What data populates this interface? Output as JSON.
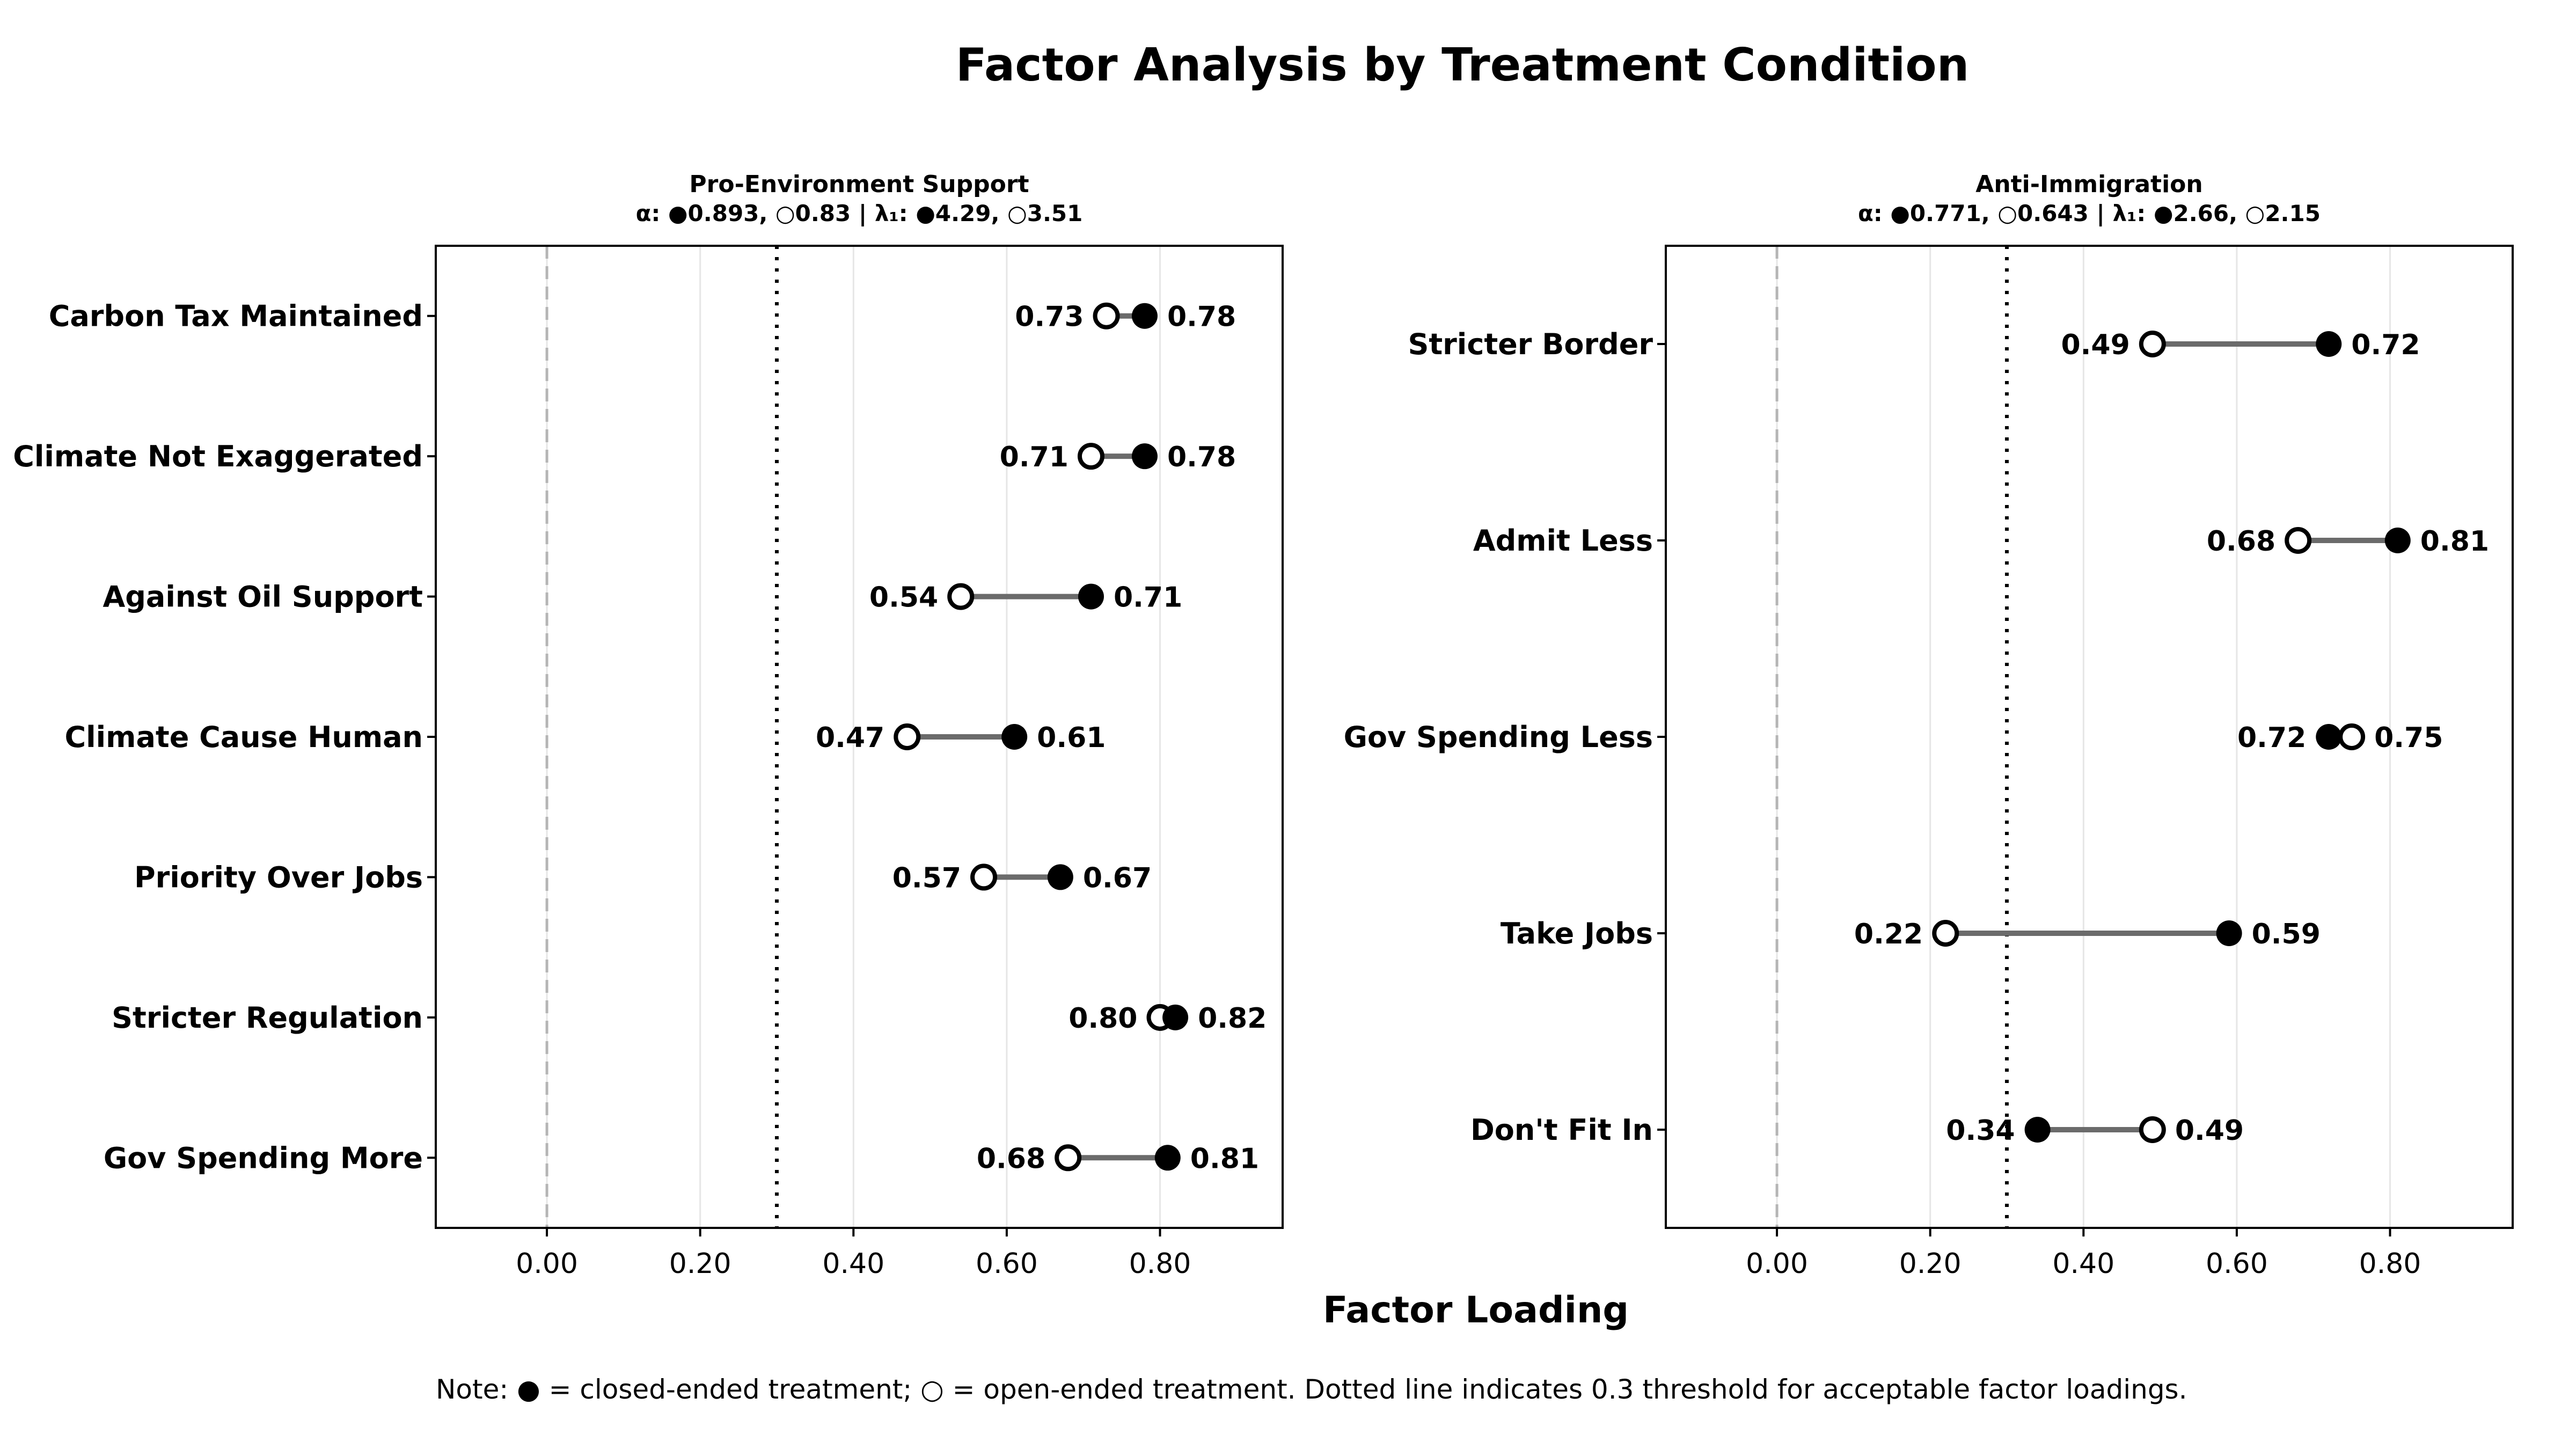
{
  "figure_title": "Factor Analysis by Treatment Condition",
  "xlabel": "Factor Loading",
  "note": "Note: ● = closed-ended treatment; ○ = open-ended treatment. Dotted line indicates 0.3 threshold for acceptable factor loadings.",
  "chart_data": [
    {
      "type": "dumbbell",
      "title": "Pro-Environment Support",
      "subtitle": "α: ●0.893, ○0.83 | λ₁: ●4.29, ○3.51",
      "xlabel": "Factor Loading",
      "xlim": [
        -0.145,
        0.96
      ],
      "xticks": [
        "0.00",
        "0.20",
        "0.40",
        "0.60",
        "0.80"
      ],
      "xtick_values": [
        0,
        0.2,
        0.4,
        0.6,
        0.8
      ],
      "threshold": 0.3,
      "zero_line": 0,
      "grid": true,
      "items": [
        "Carbon Tax Maintained",
        "Climate Not Exaggerated",
        "Against Oil Support",
        "Climate Cause Human",
        "Priority Over Jobs",
        "Stricter Regulation",
        "Gov Spending More"
      ],
      "closed": [
        0.78,
        0.78,
        0.71,
        0.61,
        0.67,
        0.82,
        0.81
      ],
      "open": [
        0.73,
        0.71,
        0.54,
        0.47,
        0.57,
        0.8,
        0.68
      ]
    },
    {
      "type": "dumbbell",
      "title": "Anti-Immigration",
      "subtitle": "α: ●0.771, ○0.643 | λ₁: ●2.66, ○2.15",
      "xlabel": "Factor Loading",
      "xlim": [
        -0.145,
        0.96
      ],
      "xticks": [
        "0.00",
        "0.20",
        "0.40",
        "0.60",
        "0.80"
      ],
      "xtick_values": [
        0,
        0.2,
        0.4,
        0.6,
        0.8
      ],
      "threshold": 0.3,
      "zero_line": 0,
      "grid": true,
      "items": [
        "Stricter Border",
        "Admit Less",
        "Gov Spending Less",
        "Take Jobs",
        "Don't Fit In"
      ],
      "closed": [
        0.72,
        0.81,
        0.72,
        0.59,
        0.34
      ],
      "open": [
        0.49,
        0.68,
        0.75,
        0.22,
        0.49
      ]
    }
  ]
}
